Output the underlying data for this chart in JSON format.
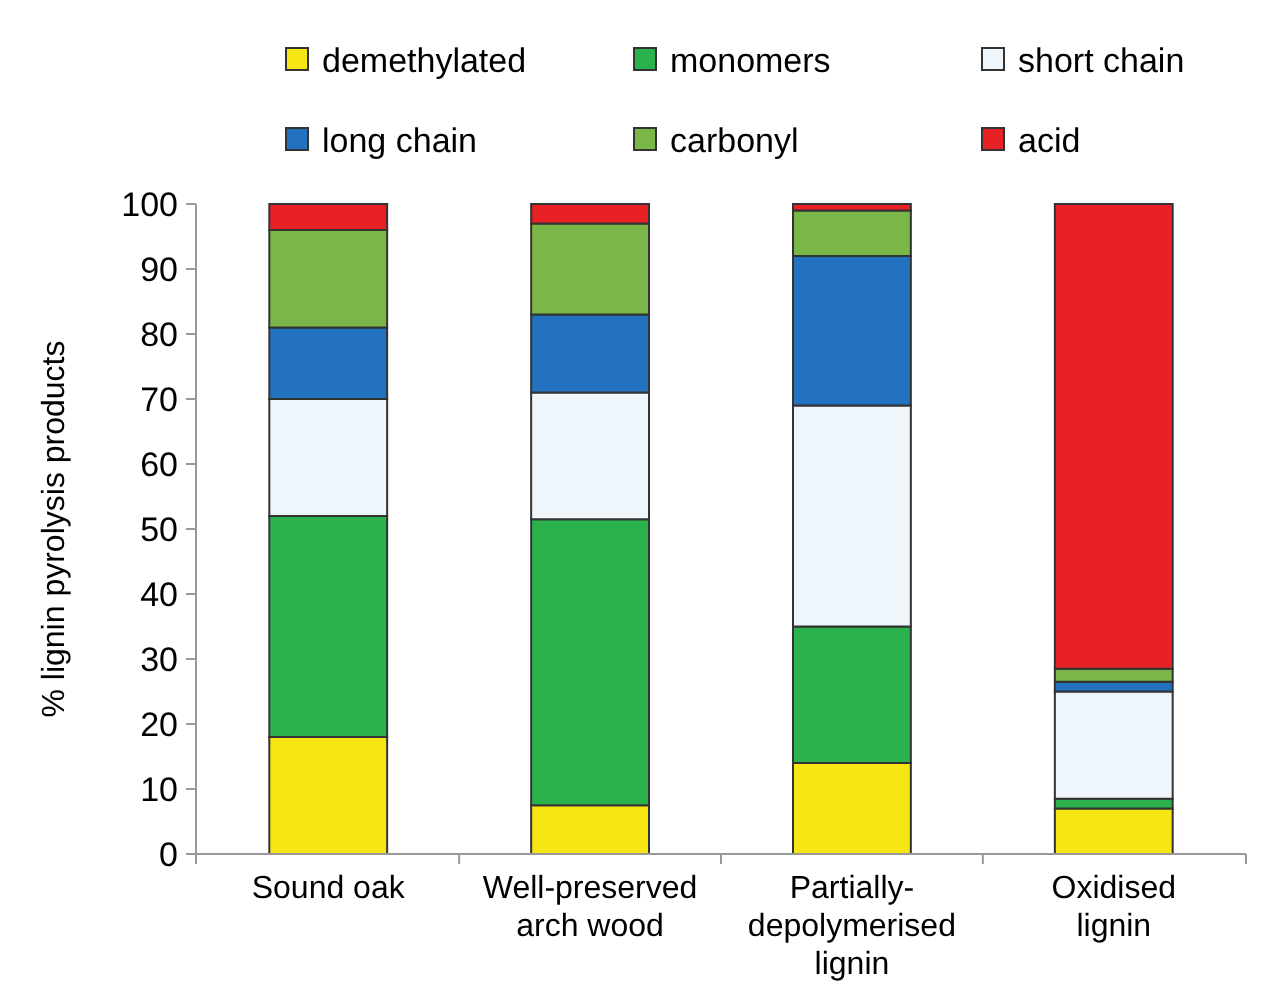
{
  "chart_data": {
    "type": "bar",
    "stacked": true,
    "ylabel": "% lignin pyrolysis products",
    "categories": [
      "Sound oak",
      "Well-preserved arch wood",
      "Partially-depolymerised lignin",
      "Oxidised lignin"
    ],
    "series": [
      {
        "name": "demethylated",
        "color": "#f5e614",
        "values": [
          18,
          7.5,
          14,
          7
        ]
      },
      {
        "name": "monomers",
        "color": "#2bb24c",
        "values": [
          34,
          44,
          21,
          1.5
        ]
      },
      {
        "name": "short chain",
        "color": "#eef6fc",
        "values": [
          18,
          19.5,
          34,
          16.5
        ]
      },
      {
        "name": "long chain",
        "color": "#2272c0",
        "values": [
          11,
          12,
          23,
          1.5
        ]
      },
      {
        "name": "carbonyl",
        "color": "#7ab648",
        "values": [
          15,
          14,
          7,
          2
        ]
      },
      {
        "name": "acid",
        "color": "#e82127",
        "values": [
          4,
          3,
          1,
          71.5
        ]
      }
    ],
    "ylim": [
      0,
      100
    ],
    "yticks": [
      0,
      10,
      20,
      30,
      40,
      50,
      60,
      70,
      80,
      90,
      100
    ],
    "legend": "top"
  }
}
